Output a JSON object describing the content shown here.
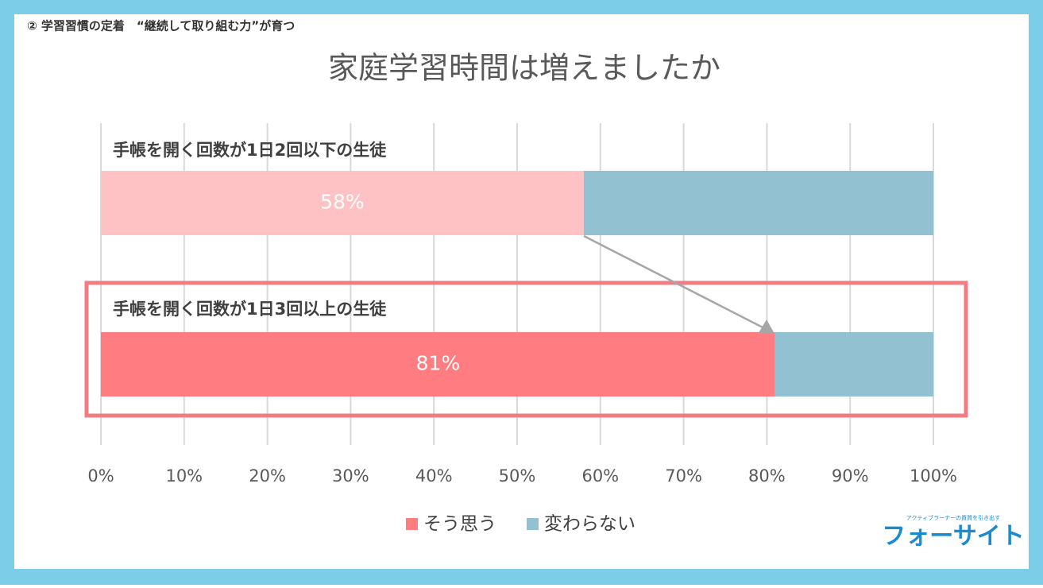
{
  "header": "② 学習習慣の定着　“継続して取り組む力”が育つ",
  "logo": {
    "tagline": "アクティブラーナーの資質を引き出す",
    "name": "フォーサイト"
  },
  "chart_data": {
    "type": "stacked_barh",
    "title": "家庭学習時間は増えましたか",
    "categories": [
      "手帳を開く回数が1日2回以下の生徒",
      "手帳を開く回数が1日3回以上の生徒"
    ],
    "series": [
      {
        "name": "そう思う",
        "color": "#ff7c80",
        "colors": [
          "#ffc2c4",
          "#ff7c80"
        ],
        "values": [
          58,
          81
        ],
        "value_labels": [
          "58%",
          "81%"
        ]
      },
      {
        "name": "変わらない",
        "color": "#92c2d2",
        "values": [
          42,
          19
        ]
      }
    ],
    "xlim": [
      0,
      100
    ],
    "xticks": [
      {
        "value": 0,
        "label": "0%"
      },
      {
        "value": 10,
        "label": "10%"
      },
      {
        "value": 20,
        "label": "20%"
      },
      {
        "value": 30,
        "label": "30%"
      },
      {
        "value": 40,
        "label": "40%"
      },
      {
        "value": 50,
        "label": "50%"
      },
      {
        "value": 60,
        "label": "60%"
      },
      {
        "value": 70,
        "label": "70%"
      },
      {
        "value": 80,
        "label": "80%"
      },
      {
        "value": 90,
        "label": "90%"
      },
      {
        "value": 100,
        "label": "100%"
      }
    ],
    "grid": true,
    "legend": "bottom"
  }
}
